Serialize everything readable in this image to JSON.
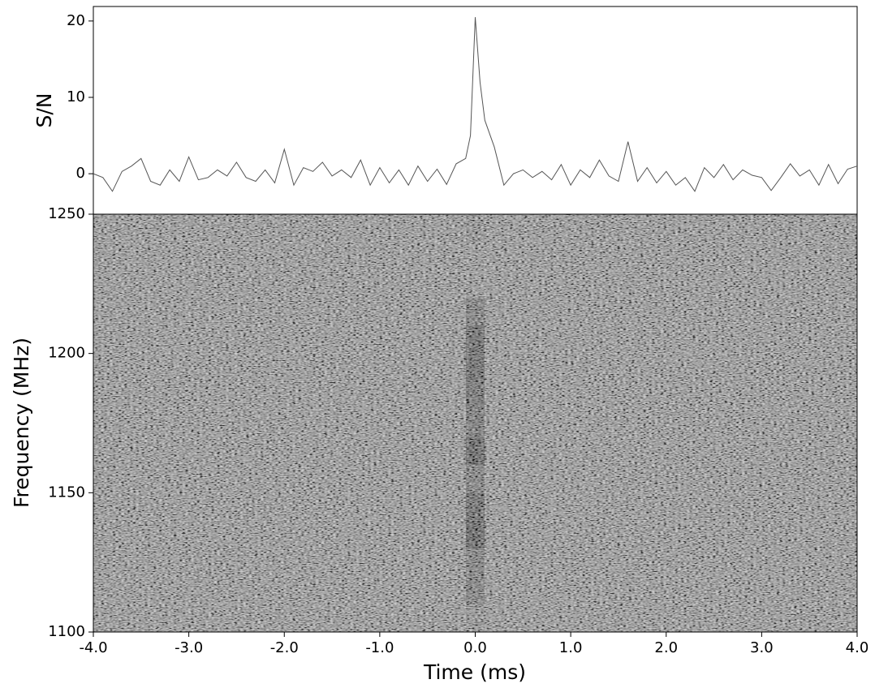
{
  "chart_data": [
    {
      "type": "line",
      "ylabel": "S/N",
      "color": "#555555",
      "x": [
        -4.0,
        -3.9,
        -3.8,
        -3.7,
        -3.6,
        -3.5,
        -3.4,
        -3.3,
        -3.2,
        -3.1,
        -3.0,
        -2.9,
        -2.8,
        -2.7,
        -2.6,
        -2.5,
        -2.4,
        -2.3,
        -2.2,
        -2.1,
        -2.0,
        -1.9,
        -1.8,
        -1.7,
        -1.6,
        -1.5,
        -1.4,
        -1.3,
        -1.2,
        -1.1,
        -1.0,
        -0.9,
        -0.8,
        -0.7,
        -0.6,
        -0.5,
        -0.4,
        -0.3,
        -0.2,
        -0.1,
        -0.05,
        0.0,
        0.05,
        0.1,
        0.2,
        0.3,
        0.4,
        0.5,
        0.6,
        0.7,
        0.8,
        0.9,
        1.0,
        1.1,
        1.2,
        1.3,
        1.4,
        1.5,
        1.6,
        1.7,
        1.8,
        1.9,
        2.0,
        2.1,
        2.2,
        2.3,
        2.4,
        2.5,
        2.6,
        2.7,
        2.8,
        2.9,
        3.0,
        3.1,
        3.2,
        3.3,
        3.4,
        3.5,
        3.6,
        3.7,
        3.8,
        3.9,
        4.0
      ],
      "values": [
        0,
        -0.5,
        -2.3,
        0.3,
        1,
        2,
        -1,
        -1.5,
        0.5,
        -1,
        2.2,
        -0.8,
        -0.5,
        0.5,
        -0.3,
        1.5,
        -0.5,
        -1,
        0.5,
        -1.2,
        3.2,
        -1.5,
        0.8,
        0.3,
        1.5,
        -0.3,
        0.5,
        -0.5,
        1.8,
        -1.5,
        0.8,
        -1.2,
        0.5,
        -1.5,
        1,
        -1,
        0.6,
        -1.4,
        1.3,
        2,
        5,
        20.5,
        12,
        7,
        3.5,
        -1.5,
        0,
        0.5,
        -0.5,
        0.3,
        -0.8,
        1.2,
        -1.5,
        0.5,
        -0.5,
        1.8,
        -0.3,
        -1,
        4.2,
        -1,
        0.8,
        -1.2,
        0.3,
        -1.5,
        -0.5,
        -2.3,
        0.8,
        -0.5,
        1.2,
        -0.8,
        0.5,
        -0.2,
        -0.5,
        -2.2,
        -0.5,
        1.3,
        -0.3,
        0.5,
        -1.5,
        1.2,
        -1.3,
        0.6,
        1
      ],
      "xlim": [
        -4,
        4
      ],
      "ylim": [
        -5.3,
        21.9
      ],
      "yticks": [
        0,
        10,
        20
      ]
    },
    {
      "type": "heatmap",
      "xlabel": "Time (ms)",
      "ylabel": "Frequency (MHz)",
      "colormap": "gray",
      "x": [
        -4,
        -0.1,
        0.1,
        4
      ],
      "y": [
        1100,
        1110,
        1120,
        1130,
        1140,
        1150,
        1160,
        1170,
        1180,
        1190,
        1200,
        1210,
        1220,
        1230,
        1240,
        1250
      ],
      "values": [
        [
          0.5,
          0.45,
          0.5
        ],
        [
          0.5,
          0.3,
          0.5
        ],
        [
          0.5,
          0.3,
          0.5
        ],
        [
          0.5,
          0.1,
          0.5
        ],
        [
          0.5,
          0.15,
          0.5
        ],
        [
          0.5,
          0.3,
          0.5
        ],
        [
          0.5,
          0.1,
          0.5
        ],
        [
          0.5,
          0.25,
          0.5
        ],
        [
          0.5,
          0.2,
          0.5
        ],
        [
          0.5,
          0.15,
          0.5
        ],
        [
          0.5,
          0.15,
          0.5
        ],
        [
          0.5,
          0.3,
          0.5
        ],
        [
          0.5,
          0.5,
          0.5
        ],
        [
          0.5,
          0.5,
          0.5
        ],
        [
          0.5,
          0.45,
          0.5
        ]
      ],
      "xlim": [
        -4,
        4
      ],
      "ylim": [
        1100,
        1250
      ],
      "xticks": [
        {
          "value": -4,
          "label": "-4.0"
        },
        {
          "value": -3,
          "label": "-3.0"
        },
        {
          "value": -2,
          "label": "-2.0"
        },
        {
          "value": -1,
          "label": "-1.0"
        },
        {
          "value": 0,
          "label": "0.0"
        },
        {
          "value": 1,
          "label": "1.0"
        },
        {
          "value": 2,
          "label": "2.0"
        },
        {
          "value": 3,
          "label": "3.0"
        },
        {
          "value": 4,
          "label": "4.0"
        }
      ],
      "yticks": [
        1100,
        1150,
        1200,
        1250
      ]
    }
  ]
}
